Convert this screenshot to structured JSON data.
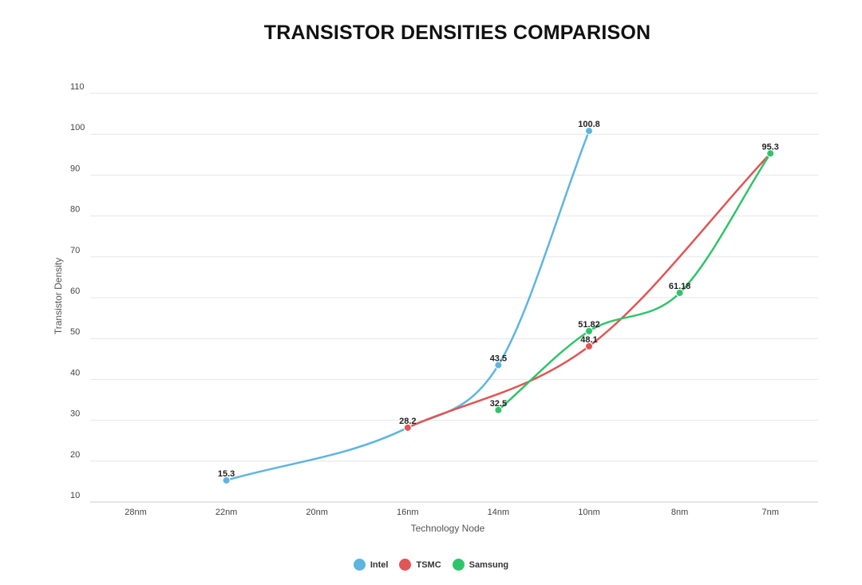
{
  "chart_data": {
    "type": "line",
    "title": "TRANSISTOR DENSITIES COMPARISON",
    "xlabel": "Technology Node",
    "ylabel": "Transistor Density",
    "categories": [
      "28nm",
      "22nm",
      "20nm",
      "16nm",
      "14nm",
      "10nm",
      "8nm",
      "7nm"
    ],
    "yticks": [
      10,
      20,
      30,
      40,
      50,
      60,
      70,
      80,
      90,
      100,
      110
    ],
    "ylim": [
      10,
      110
    ],
    "grid": true,
    "legend_position": "bottom",
    "series": [
      {
        "name": "Intel",
        "color": "#5db5e0",
        "values": [
          null,
          15.3,
          null,
          28.2,
          43.5,
          100.8,
          null,
          null
        ],
        "labels": [
          null,
          "15.3",
          null,
          null,
          "43.5",
          "100.8",
          null,
          null
        ]
      },
      {
        "name": "TSMC",
        "color": "#e05555",
        "values": [
          null,
          null,
          null,
          28.2,
          null,
          48.1,
          null,
          95.3
        ],
        "labels": [
          null,
          null,
          null,
          "28.2",
          null,
          "48.1",
          null,
          null
        ]
      },
      {
        "name": "Samsung",
        "color": "#2fc46a",
        "values": [
          null,
          null,
          null,
          null,
          32.5,
          51.82,
          61.18,
          95.3
        ],
        "labels": [
          null,
          null,
          null,
          null,
          "32.5",
          "51.82",
          "61.18",
          "95.3"
        ]
      }
    ]
  }
}
